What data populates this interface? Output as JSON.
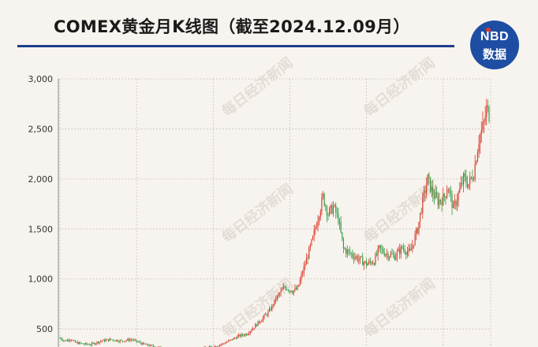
{
  "header": {
    "title": "COMEX黄金月K线图（截至2024.12.09月）",
    "logo_top": "NBD",
    "logo_bottom": "数据"
  },
  "watermark": "每日经济新闻",
  "colors": {
    "up": "#d93a2b",
    "down": "#2f9e44",
    "accent": "#1d3f8c",
    "grid": "#c9c3bc"
  },
  "chart_data": {
    "type": "candlestick",
    "title": "COMEX黄金月K线图（截至2024.12.09月）",
    "xlabel": "",
    "ylabel": "",
    "ylim": [
      320,
      3000
    ],
    "y_ticks": [
      500,
      1000,
      1500,
      2000,
      2500,
      3000
    ],
    "y_tick_labels": [
      "500",
      "1,000",
      "1,500",
      "2,000",
      "2,500",
      "3,000"
    ],
    "grid": true,
    "price_path": [
      [
        0,
        410
      ],
      [
        4,
        380
      ],
      [
        8,
        400
      ],
      [
        12,
        365
      ],
      [
        18,
        350
      ],
      [
        24,
        345
      ],
      [
        32,
        380
      ],
      [
        40,
        395
      ],
      [
        48,
        380
      ],
      [
        56,
        395
      ],
      [
        60,
        375
      ],
      [
        66,
        345
      ],
      [
        76,
        320
      ],
      [
        86,
        295
      ],
      [
        96,
        288
      ],
      [
        104,
        272
      ],
      [
        110,
        300
      ],
      [
        116,
        315
      ],
      [
        122,
        330
      ],
      [
        128,
        355
      ],
      [
        134,
        390
      ],
      [
        140,
        430
      ],
      [
        146,
        450
      ],
      [
        152,
        520
      ],
      [
        158,
        600
      ],
      [
        164,
        680
      ],
      [
        170,
        820
      ],
      [
        176,
        920
      ],
      [
        182,
        880
      ],
      [
        186,
        900
      ],
      [
        192,
        1150
      ],
      [
        198,
        1400
      ],
      [
        202,
        1620
      ],
      [
        206,
        1820
      ],
      [
        210,
        1650
      ],
      [
        214,
        1720
      ],
      [
        218,
        1600
      ],
      [
        222,
        1300
      ],
      [
        228,
        1250
      ],
      [
        234,
        1200
      ],
      [
        240,
        1150
      ],
      [
        246,
        1180
      ],
      [
        250,
        1300
      ],
      [
        256,
        1250
      ],
      [
        262,
        1230
      ],
      [
        268,
        1310
      ],
      [
        274,
        1260
      ],
      [
        280,
        1500
      ],
      [
        284,
        1780
      ],
      [
        288,
        2000
      ],
      [
        292,
        1850
      ],
      [
        296,
        1780
      ],
      [
        300,
        1800
      ],
      [
        304,
        1920
      ],
      [
        308,
        1700
      ],
      [
        312,
        1850
      ],
      [
        316,
        2000
      ],
      [
        320,
        1950
      ],
      [
        324,
        2060
      ],
      [
        328,
        2400
      ],
      [
        332,
        2550
      ],
      [
        334,
        2700
      ],
      [
        336,
        2650
      ]
    ],
    "candles_count": 337,
    "x_vgrid_months": [
      0,
      60,
      120,
      180,
      240,
      300
    ]
  }
}
